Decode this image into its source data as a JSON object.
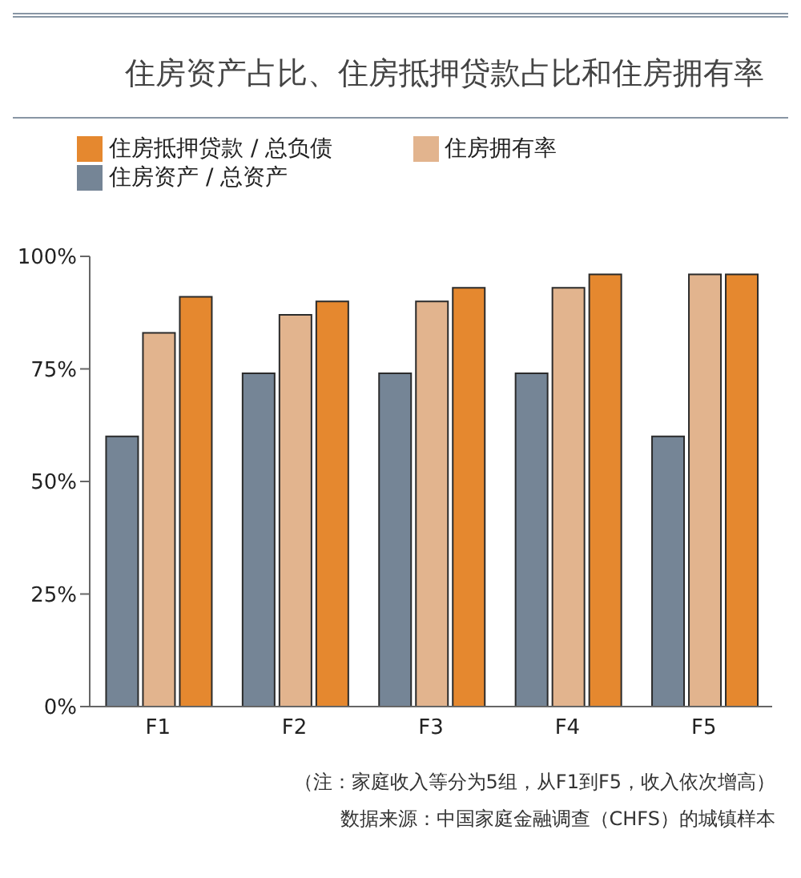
{
  "chart_data": {
    "type": "bar",
    "title": "住房资产占比、住房抵押贷款占比和住房拥有率",
    "categories": [
      "F1",
      "F2",
      "F3",
      "F4",
      "F5"
    ],
    "series": [
      {
        "name": "住房资产 / 总资产",
        "color": "#758596",
        "values": [
          60,
          74,
          74,
          74,
          60
        ]
      },
      {
        "name": "住房拥有率",
        "color": "#e2b48e",
        "values": [
          83,
          87,
          90,
          93,
          96
        ]
      },
      {
        "name": "住房抵押贷款 / 总负债",
        "color": "#e5882f",
        "values": [
          91,
          90,
          93,
          96,
          96
        ]
      }
    ],
    "ylim": [
      0,
      100
    ],
    "yticks": [
      {
        "value": 0,
        "label": "0%"
      },
      {
        "value": 25,
        "label": "25%"
      },
      {
        "value": 50,
        "label": "50%"
      },
      {
        "value": 75,
        "label": "75%"
      },
      {
        "value": 100,
        "label": "100%"
      }
    ],
    "grid": false,
    "legend": "top left",
    "annotations": [
      "（注：家庭收入等分为5组，从F1到F5，收入依次增高）",
      "数据来源：中国家庭金融调查（CHFS）的城镇样本"
    ]
  }
}
